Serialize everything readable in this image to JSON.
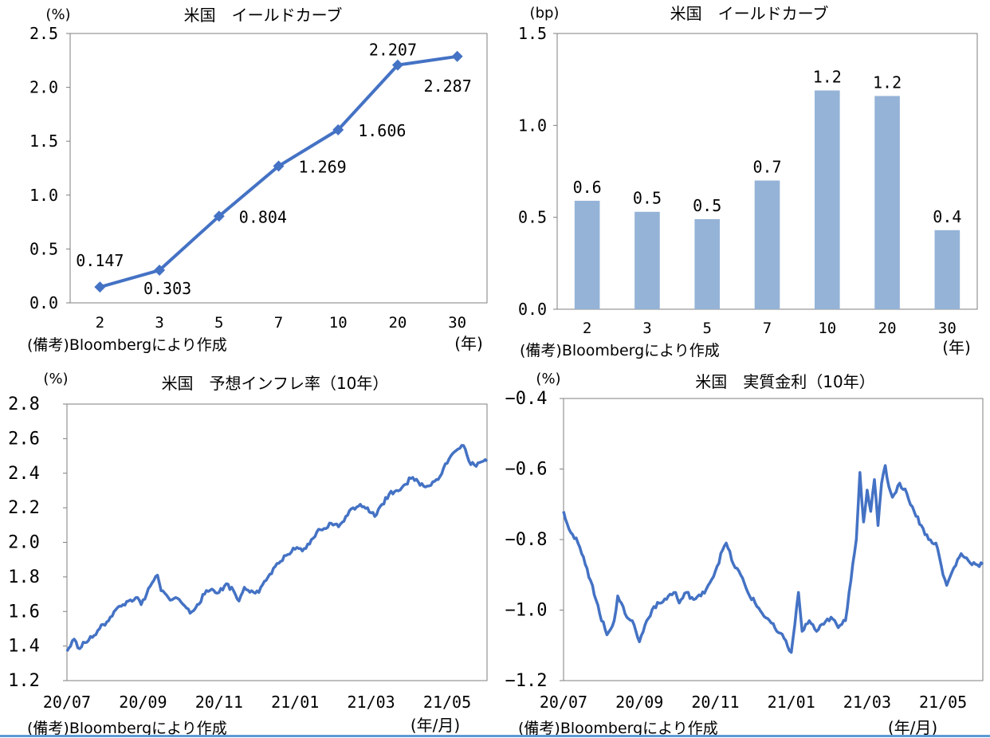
{
  "chart_data": [
    {
      "type": "line",
      "title": "米国　イールドカーブ",
      "unit_label": "(%)",
      "categories": [
        "2",
        "3",
        "5",
        "7",
        "10",
        "20",
        "30"
      ],
      "x_unit": "(年)",
      "values": [
        0.147,
        0.303,
        0.804,
        1.269,
        1.606,
        2.207,
        2.287
      ],
      "data_labels": [
        "0.147",
        "0.303",
        "0.804",
        "1.269",
        "1.606",
        "2.207",
        "2.287"
      ],
      "ylim": [
        0,
        2.5
      ],
      "y_ticks": [
        "0.0",
        "0.5",
        "1.0",
        "1.5",
        "2.0",
        "2.5"
      ],
      "note": "(備考)Bloombergにより作成",
      "color": "#4472c4"
    },
    {
      "type": "bar",
      "title": "米国　イールドカーブ",
      "unit_label": "(bp)",
      "categories": [
        "2",
        "3",
        "5",
        "7",
        "10",
        "20",
        "30"
      ],
      "x_unit": "(年)",
      "values": [
        0.59,
        0.53,
        0.49,
        0.7,
        1.19,
        1.16,
        0.43
      ],
      "data_labels": [
        "0.6",
        "0.5",
        "0.5",
        "0.7",
        "1.2",
        "1.2",
        "0.4"
      ],
      "ylim": [
        0,
        1.5
      ],
      "y_ticks": [
        "0.0",
        "0.5",
        "1.0",
        "1.5"
      ],
      "note": "(備考)Bloombergにより作成",
      "color": "#95b3d7"
    },
    {
      "type": "line",
      "title": "米国　予想インフレ率（10年）",
      "unit_label": "(%)",
      "x_ticks": [
        "20/07",
        "20/09",
        "20/11",
        "21/01",
        "21/03",
        "21/05"
      ],
      "x_unit": "(年/月)",
      "ylim": [
        1.2,
        2.8
      ],
      "y_ticks": [
        "1.2",
        "1.4",
        "1.6",
        "1.8",
        "2.0",
        "2.2",
        "2.4",
        "2.6",
        "2.8"
      ],
      "anchors": [
        [
          0,
          1.37
        ],
        [
          4,
          1.44
        ],
        [
          6,
          1.39
        ],
        [
          10,
          1.42
        ],
        [
          14,
          1.45
        ],
        [
          18,
          1.5
        ],
        [
          22,
          1.54
        ],
        [
          26,
          1.6
        ],
        [
          30,
          1.63
        ],
        [
          34,
          1.66
        ],
        [
          38,
          1.68
        ],
        [
          41,
          1.64
        ],
        [
          44,
          1.7
        ],
        [
          48,
          1.78
        ],
        [
          50,
          1.81
        ],
        [
          52,
          1.72
        ],
        [
          56,
          1.68
        ],
        [
          62,
          1.67
        ],
        [
          66,
          1.62
        ],
        [
          68,
          1.59
        ],
        [
          72,
          1.64
        ],
        [
          76,
          1.7
        ],
        [
          80,
          1.73
        ],
        [
          84,
          1.71
        ],
        [
          88,
          1.76
        ],
        [
          92,
          1.72
        ],
        [
          95,
          1.66
        ],
        [
          98,
          1.74
        ],
        [
          102,
          1.72
        ],
        [
          106,
          1.71
        ],
        [
          110,
          1.78
        ],
        [
          114,
          1.85
        ],
        [
          118,
          1.89
        ],
        [
          122,
          1.93
        ],
        [
          126,
          1.96
        ],
        [
          130,
          1.95
        ],
        [
          134,
          1.99
        ],
        [
          138,
          2.06
        ],
        [
          142,
          2.08
        ],
        [
          146,
          2.11
        ],
        [
          150,
          2.09
        ],
        [
          154,
          2.15
        ],
        [
          158,
          2.2
        ],
        [
          162,
          2.22
        ],
        [
          166,
          2.2
        ],
        [
          170,
          2.15
        ],
        [
          174,
          2.22
        ],
        [
          178,
          2.28
        ],
        [
          182,
          2.3
        ],
        [
          186,
          2.33
        ],
        [
          190,
          2.37
        ],
        [
          194,
          2.35
        ],
        [
          198,
          2.32
        ],
        [
          202,
          2.35
        ],
        [
          206,
          2.38
        ],
        [
          208,
          2.43
        ],
        [
          212,
          2.5
        ],
        [
          216,
          2.54
        ],
        [
          219,
          2.56
        ],
        [
          222,
          2.47
        ],
        [
          226,
          2.44
        ],
        [
          230,
          2.47
        ],
        [
          232,
          2.47
        ]
      ],
      "note": "(備考)Bloombergにより作成",
      "color": "#4472c4"
    },
    {
      "type": "line",
      "title": "米国　実質金利（10年）",
      "unit_label": "(%)",
      "x_ticks": [
        "20/07",
        "20/09",
        "20/11",
        "21/01",
        "21/03",
        "21/05"
      ],
      "x_unit": "(年/月)",
      "ylim": [
        -1.2,
        -0.4
      ],
      "y_ticks": [
        "-1.2",
        "-1.0",
        "-0.8",
        "-0.6",
        "-0.4"
      ],
      "anchors": [
        [
          0,
          -0.72
        ],
        [
          4,
          -0.78
        ],
        [
          8,
          -0.81
        ],
        [
          12,
          -0.87
        ],
        [
          16,
          -0.93
        ],
        [
          20,
          -1.01
        ],
        [
          24,
          -1.07
        ],
        [
          28,
          -1.03
        ],
        [
          30,
          -0.96
        ],
        [
          34,
          -1.01
        ],
        [
          38,
          -1.03
        ],
        [
          42,
          -1.09
        ],
        [
          46,
          -1.03
        ],
        [
          50,
          -0.99
        ],
        [
          54,
          -0.98
        ],
        [
          58,
          -0.96
        ],
        [
          62,
          -0.95
        ],
        [
          64,
          -0.98
        ],
        [
          68,
          -0.95
        ],
        [
          72,
          -0.97
        ],
        [
          76,
          -0.96
        ],
        [
          80,
          -0.93
        ],
        [
          84,
          -0.89
        ],
        [
          88,
          -0.83
        ],
        [
          90,
          -0.81
        ],
        [
          94,
          -0.87
        ],
        [
          98,
          -0.9
        ],
        [
          102,
          -0.95
        ],
        [
          106,
          -0.98
        ],
        [
          110,
          -1.01
        ],
        [
          114,
          -1.03
        ],
        [
          118,
          -1.06
        ],
        [
          122,
          -1.08
        ],
        [
          126,
          -1.12
        ],
        [
          128,
          -1.04
        ],
        [
          130,
          -0.95
        ],
        [
          132,
          -1.06
        ],
        [
          136,
          -1.03
        ],
        [
          140,
          -1.06
        ],
        [
          144,
          -1.04
        ],
        [
          148,
          -1.02
        ],
        [
          152,
          -1.05
        ],
        [
          156,
          -1.03
        ],
        [
          158,
          -0.95
        ],
        [
          160,
          -0.87
        ],
        [
          162,
          -0.8
        ],
        [
          164,
          -0.61
        ],
        [
          166,
          -0.75
        ],
        [
          168,
          -0.66
        ],
        [
          170,
          -0.72
        ],
        [
          172,
          -0.63
        ],
        [
          174,
          -0.76
        ],
        [
          176,
          -0.64
        ],
        [
          178,
          -0.59
        ],
        [
          180,
          -0.65
        ],
        [
          182,
          -0.68
        ],
        [
          186,
          -0.64
        ],
        [
          190,
          -0.67
        ],
        [
          194,
          -0.72
        ],
        [
          198,
          -0.76
        ],
        [
          202,
          -0.8
        ],
        [
          206,
          -0.81
        ],
        [
          208,
          -0.85
        ],
        [
          210,
          -0.9
        ],
        [
          212,
          -0.93
        ],
        [
          216,
          -0.88
        ],
        [
          220,
          -0.84
        ],
        [
          224,
          -0.86
        ],
        [
          228,
          -0.87
        ],
        [
          232,
          -0.87
        ]
      ],
      "note": "(備考)Bloombergにより作成",
      "color": "#4472c4"
    }
  ]
}
